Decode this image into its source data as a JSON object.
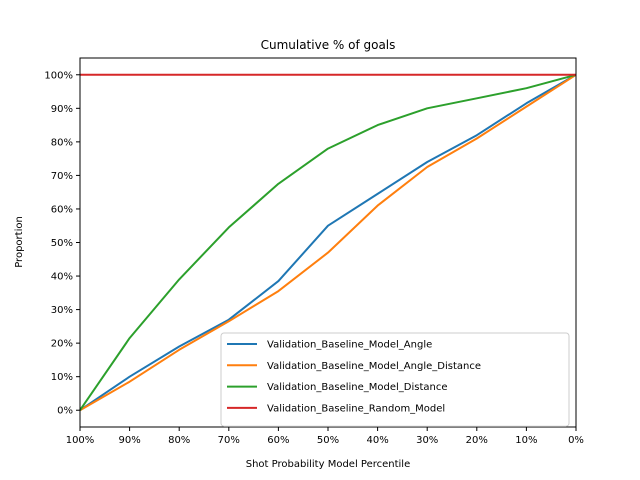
{
  "chart_data": {
    "type": "line",
    "title": "Cumulative % of goals",
    "xlabel": "Shot Probability Model Percentile",
    "ylabel": "Proportion",
    "x_tick_labels": [
      "100%",
      "90%",
      "80%",
      "70%",
      "60%",
      "50%",
      "40%",
      "30%",
      "20%",
      "10%",
      "0%"
    ],
    "y_tick_labels": [
      "0%",
      "10%",
      "20%",
      "30%",
      "40%",
      "50%",
      "60%",
      "70%",
      "80%",
      "90%",
      "100%"
    ],
    "xlim": [
      100,
      0
    ],
    "ylim": [
      -0.05,
      1.05
    ],
    "grid": false,
    "legend_position": "lower-right",
    "x": [
      100,
      90,
      80,
      70,
      60,
      50,
      40,
      30,
      20,
      10,
      0
    ],
    "series": [
      {
        "name": "Validation_Baseline_Model_Angle",
        "color": "#1f77b4",
        "values": [
          0.0,
          0.1,
          0.19,
          0.27,
          0.385,
          0.55,
          0.645,
          0.74,
          0.82,
          0.915,
          1.0
        ]
      },
      {
        "name": "Validation_Baseline_Model_Angle_Distance",
        "color": "#ff7f0e",
        "values": [
          0.0,
          0.085,
          0.18,
          0.265,
          0.355,
          0.47,
          0.61,
          0.725,
          0.81,
          0.905,
          1.0
        ]
      },
      {
        "name": "Validation_Baseline_Model_Distance",
        "color": "#2ca02c",
        "values": [
          0.0,
          0.215,
          0.39,
          0.545,
          0.675,
          0.78,
          0.85,
          0.9,
          0.93,
          0.96,
          1.0
        ]
      },
      {
        "name": "Validation_Baseline_Random_Model",
        "color": "#d62728",
        "values": [
          1.0,
          1.0,
          1.0,
          1.0,
          1.0,
          1.0,
          1.0,
          1.0,
          1.0,
          1.0,
          1.0
        ]
      }
    ]
  }
}
